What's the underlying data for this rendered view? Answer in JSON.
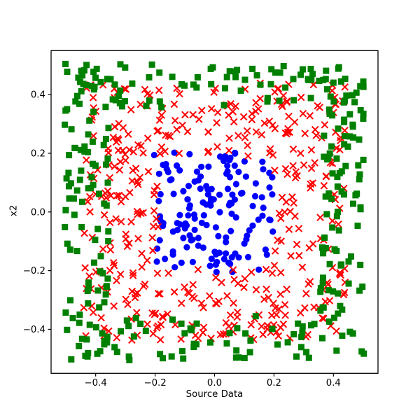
{
  "chart_data": {
    "type": "scatter",
    "title": "",
    "xlabel": "Source Data",
    "ylabel": "x2",
    "xlim": [
      -0.55,
      0.55
    ],
    "ylim": [
      -0.55,
      0.55
    ],
    "grid": false,
    "legend": null,
    "background_color": "#ffffff",
    "axes_color": "#000000",
    "xticks": [
      {
        "v": -0.4,
        "label": "−0.4"
      },
      {
        "v": -0.2,
        "label": "−0.2"
      },
      {
        "v": 0.0,
        "label": "0.0"
      },
      {
        "v": 0.2,
        "label": "0.2"
      },
      {
        "v": 0.4,
        "label": "0.4"
      }
    ],
    "yticks": [
      {
        "v": -0.4,
        "label": "−0.4"
      },
      {
        "v": -0.2,
        "label": "−0.2"
      },
      {
        "v": 0.0,
        "label": "0.0"
      },
      {
        "v": 0.2,
        "label": "0.2"
      },
      {
        "v": 0.4,
        "label": "0.4"
      }
    ],
    "series": [
      {
        "name": "inner-cluster-blue-circles",
        "class_label": 0,
        "marker": "circle",
        "color": "#0000ff",
        "count": 150,
        "distribution": "uniform-square-annulus",
        "chebyshev_min": 0.0,
        "chebyshev_max": 0.205,
        "seed": 101
      },
      {
        "name": "middle-ring-red-crosses",
        "class_label": 1,
        "marker": "x",
        "color": "#ff0000",
        "count": 420,
        "distribution": "uniform-square-annulus",
        "chebyshev_min": 0.19,
        "chebyshev_max": 0.44,
        "seed": 202
      },
      {
        "name": "outer-ring-green-squares",
        "class_label": 2,
        "marker": "square",
        "color": "#008000",
        "count": 330,
        "distribution": "uniform-square-annulus",
        "chebyshev_min": 0.355,
        "chebyshev_max": 0.505,
        "seed": 303
      }
    ]
  }
}
